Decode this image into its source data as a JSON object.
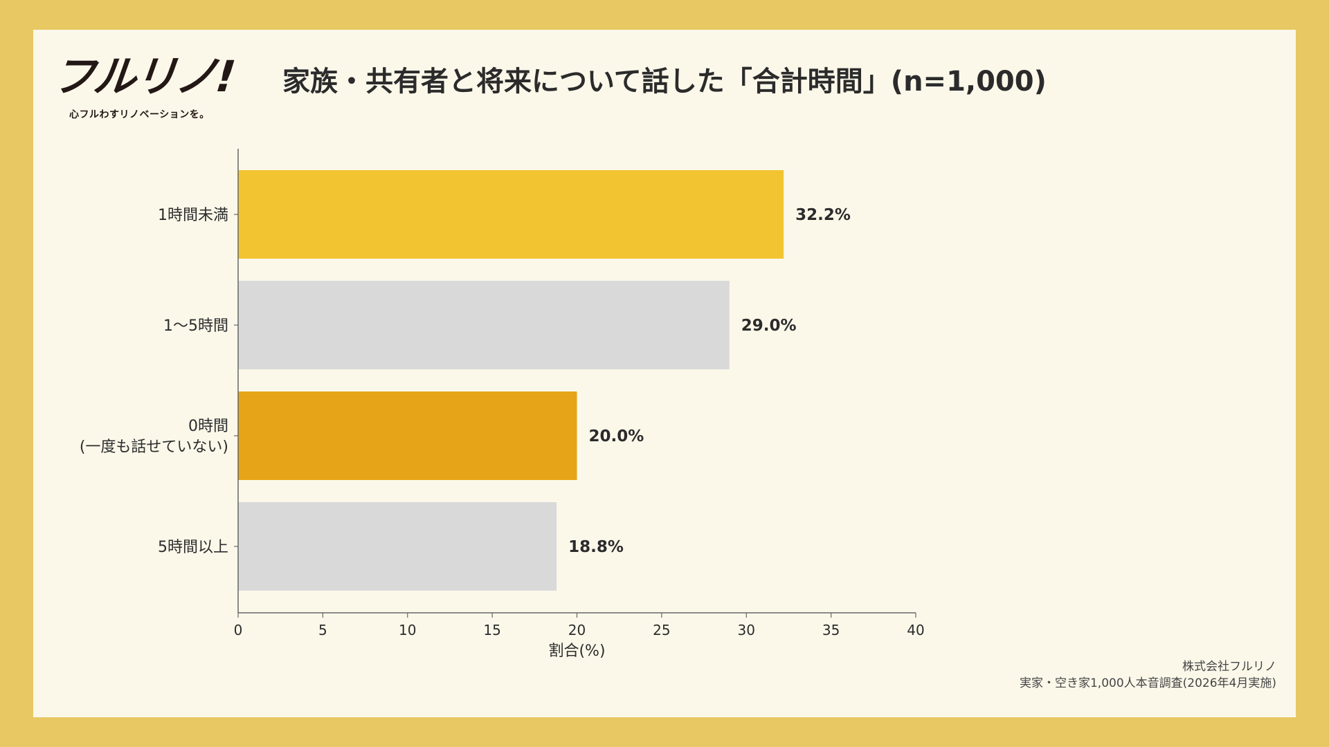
{
  "logo": {
    "mark": "フルリノ!",
    "tagline": "心フルわすリノベーションを。"
  },
  "title": "家族・共有者と将来について話した「合計時間」(n=1,000)",
  "source": {
    "company": "株式会社フルリノ",
    "survey": "実家・空き家1,000人本音調査(2026年4月実施)"
  },
  "colors": {
    "page_border": "#e8c862",
    "card_background": "#fbf8ea",
    "bar_highlight_1": "#f2c431",
    "bar_highlight_2": "#e6a418",
    "bar_neutral": "#d9d9d9"
  },
  "chart_data": {
    "type": "bar",
    "orientation": "horizontal",
    "categories": [
      "1時間未満",
      "1〜5時間",
      "0時間\n(一度も話せていない)",
      "5時間以上"
    ],
    "values": [
      32.2,
      29.0,
      20.0,
      18.8
    ],
    "value_labels": [
      "32.2%",
      "29.0%",
      "20.0%",
      "18.8%"
    ],
    "bar_colors": [
      "#f2c431",
      "#d9d9d9",
      "#e6a418",
      "#d9d9d9"
    ],
    "xlabel": "割合(%)",
    "ylabel": "",
    "xlim": [
      0,
      40
    ],
    "xticks": [
      0,
      5,
      10,
      15,
      20,
      25,
      30,
      35,
      40
    ],
    "grid": false,
    "legend": "none"
  }
}
